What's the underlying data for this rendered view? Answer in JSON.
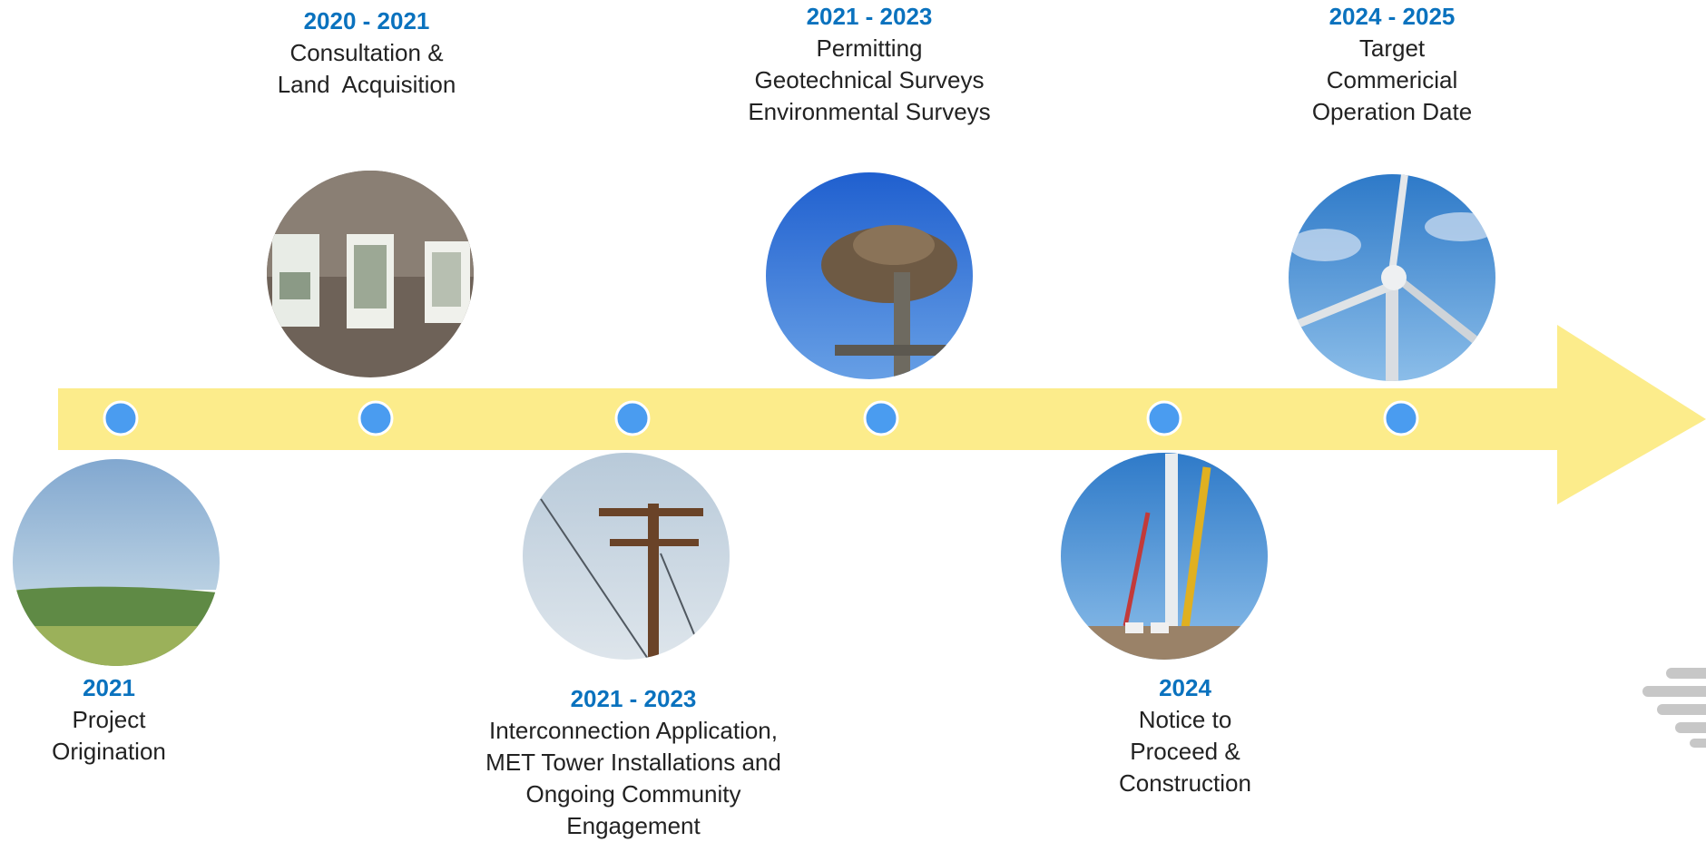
{
  "milestones": [
    {
      "period": "2021",
      "lines": [
        "Project",
        "Origination"
      ]
    },
    {
      "period": "2020 - 2021",
      "lines": [
        "Consultation &",
        "Land  Acquisition"
      ]
    },
    {
      "period": "2021 - 2023",
      "lines": [
        "Interconnection Application,",
        "MET Tower Installations and",
        "Ongoing Community",
        "Engagement"
      ]
    },
    {
      "period": "2021 - 2023",
      "lines": [
        "Permitting",
        "Geotechnical Surveys",
        "Environmental Surveys"
      ]
    },
    {
      "period": "2024",
      "lines": [
        "Notice to",
        "Proceed &",
        "Construction"
      ]
    },
    {
      "period": "2024 - 2025",
      "lines": [
        "Target",
        "Commericial",
        "Operation Date"
      ]
    }
  ]
}
